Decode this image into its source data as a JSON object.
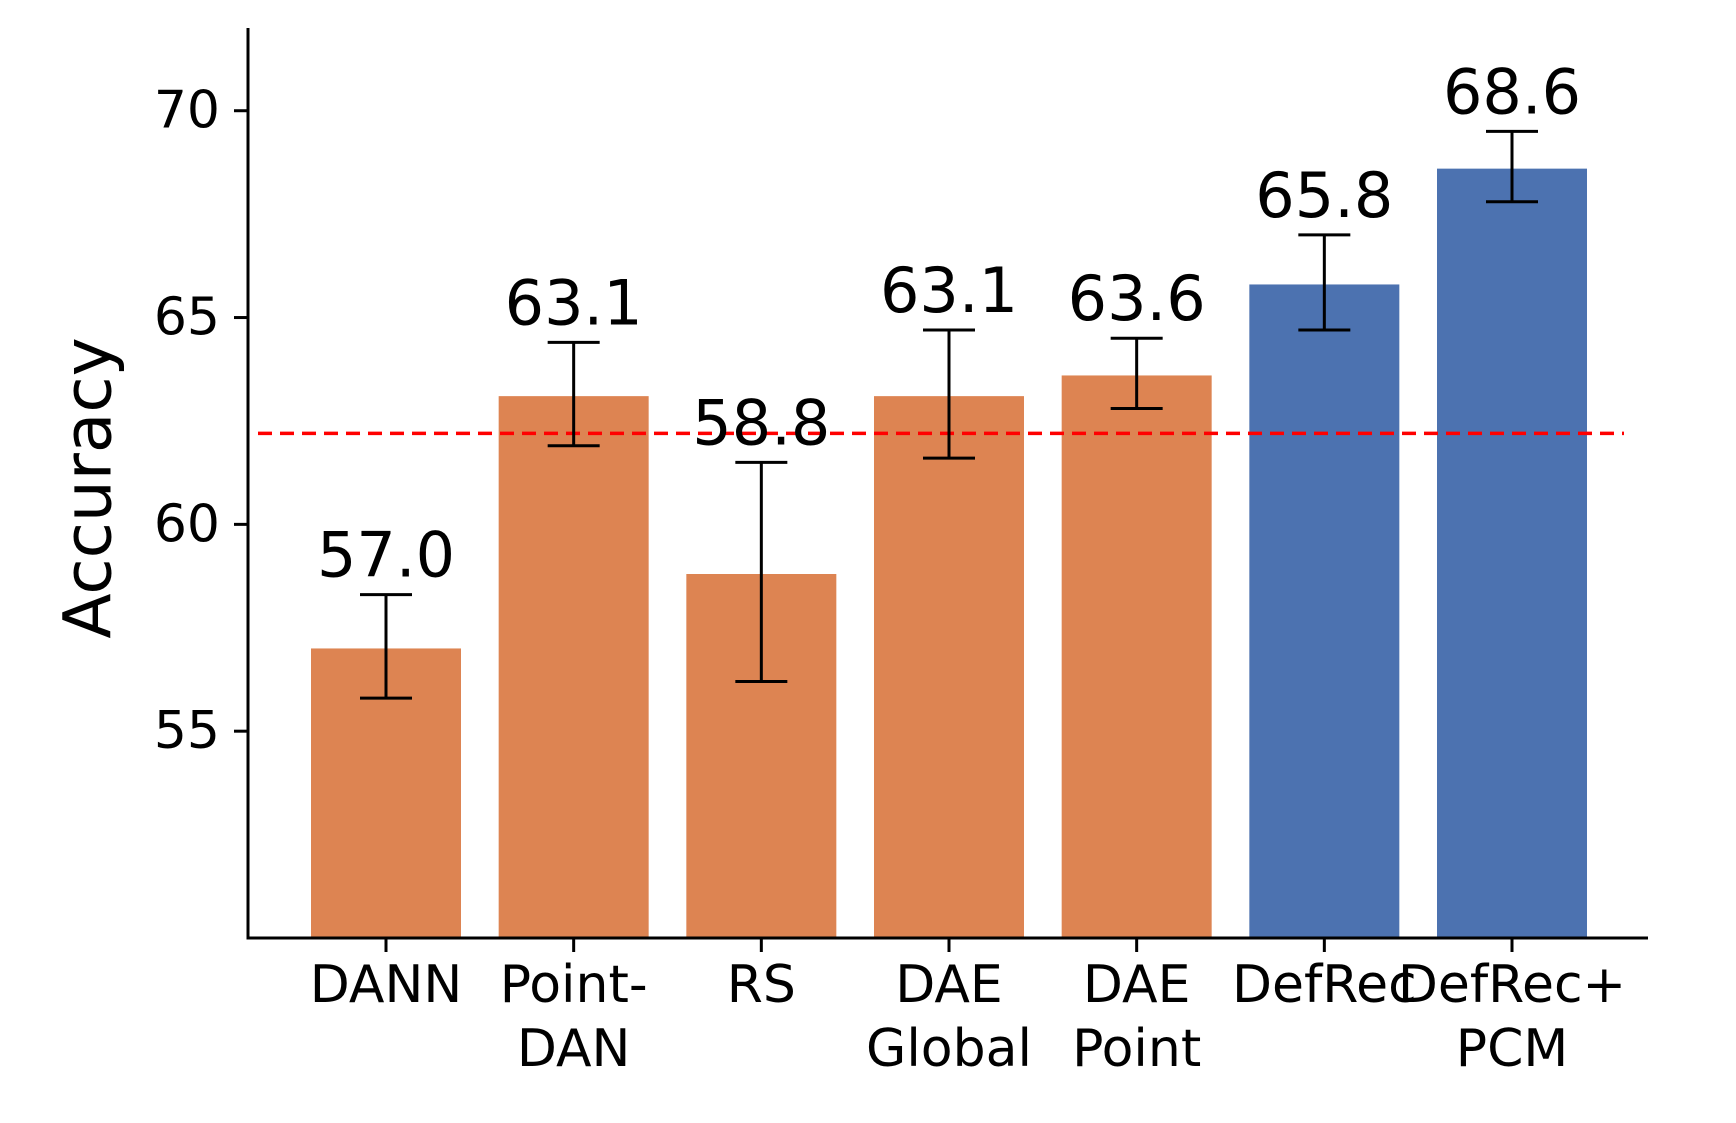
{
  "chart_data": {
    "type": "bar",
    "title": "",
    "xlabel": "",
    "ylabel": "Accuracy",
    "ylim": [
      50,
      72
    ],
    "yticks": [
      55,
      60,
      65,
      70
    ],
    "grid": false,
    "categories": [
      [
        "DANN"
      ],
      [
        "Point-",
        "DAN"
      ],
      [
        "RS"
      ],
      [
        "DAE",
        "Global"
      ],
      [
        "DAE",
        "Point"
      ],
      [
        "DefRec"
      ],
      [
        "DefRec+",
        "PCM"
      ]
    ],
    "values": [
      57.0,
      63.1,
      58.8,
      63.1,
      63.6,
      65.8,
      68.6
    ],
    "value_labels": [
      "57.0",
      "63.1",
      "58.8",
      "63.1",
      "63.6",
      "65.8",
      "68.6"
    ],
    "error_low": [
      55.8,
      61.9,
      56.2,
      61.6,
      62.8,
      64.7,
      67.8
    ],
    "error_high": [
      58.3,
      64.4,
      61.5,
      64.7,
      64.5,
      67.0,
      69.5
    ],
    "bar_colors": [
      "#DD8452",
      "#DD8452",
      "#DD8452",
      "#DD8452",
      "#DD8452",
      "#4C72B0",
      "#4C72B0"
    ],
    "reference_line": {
      "value": 62.2,
      "color": "#ff0000",
      "style": "dashed"
    }
  }
}
